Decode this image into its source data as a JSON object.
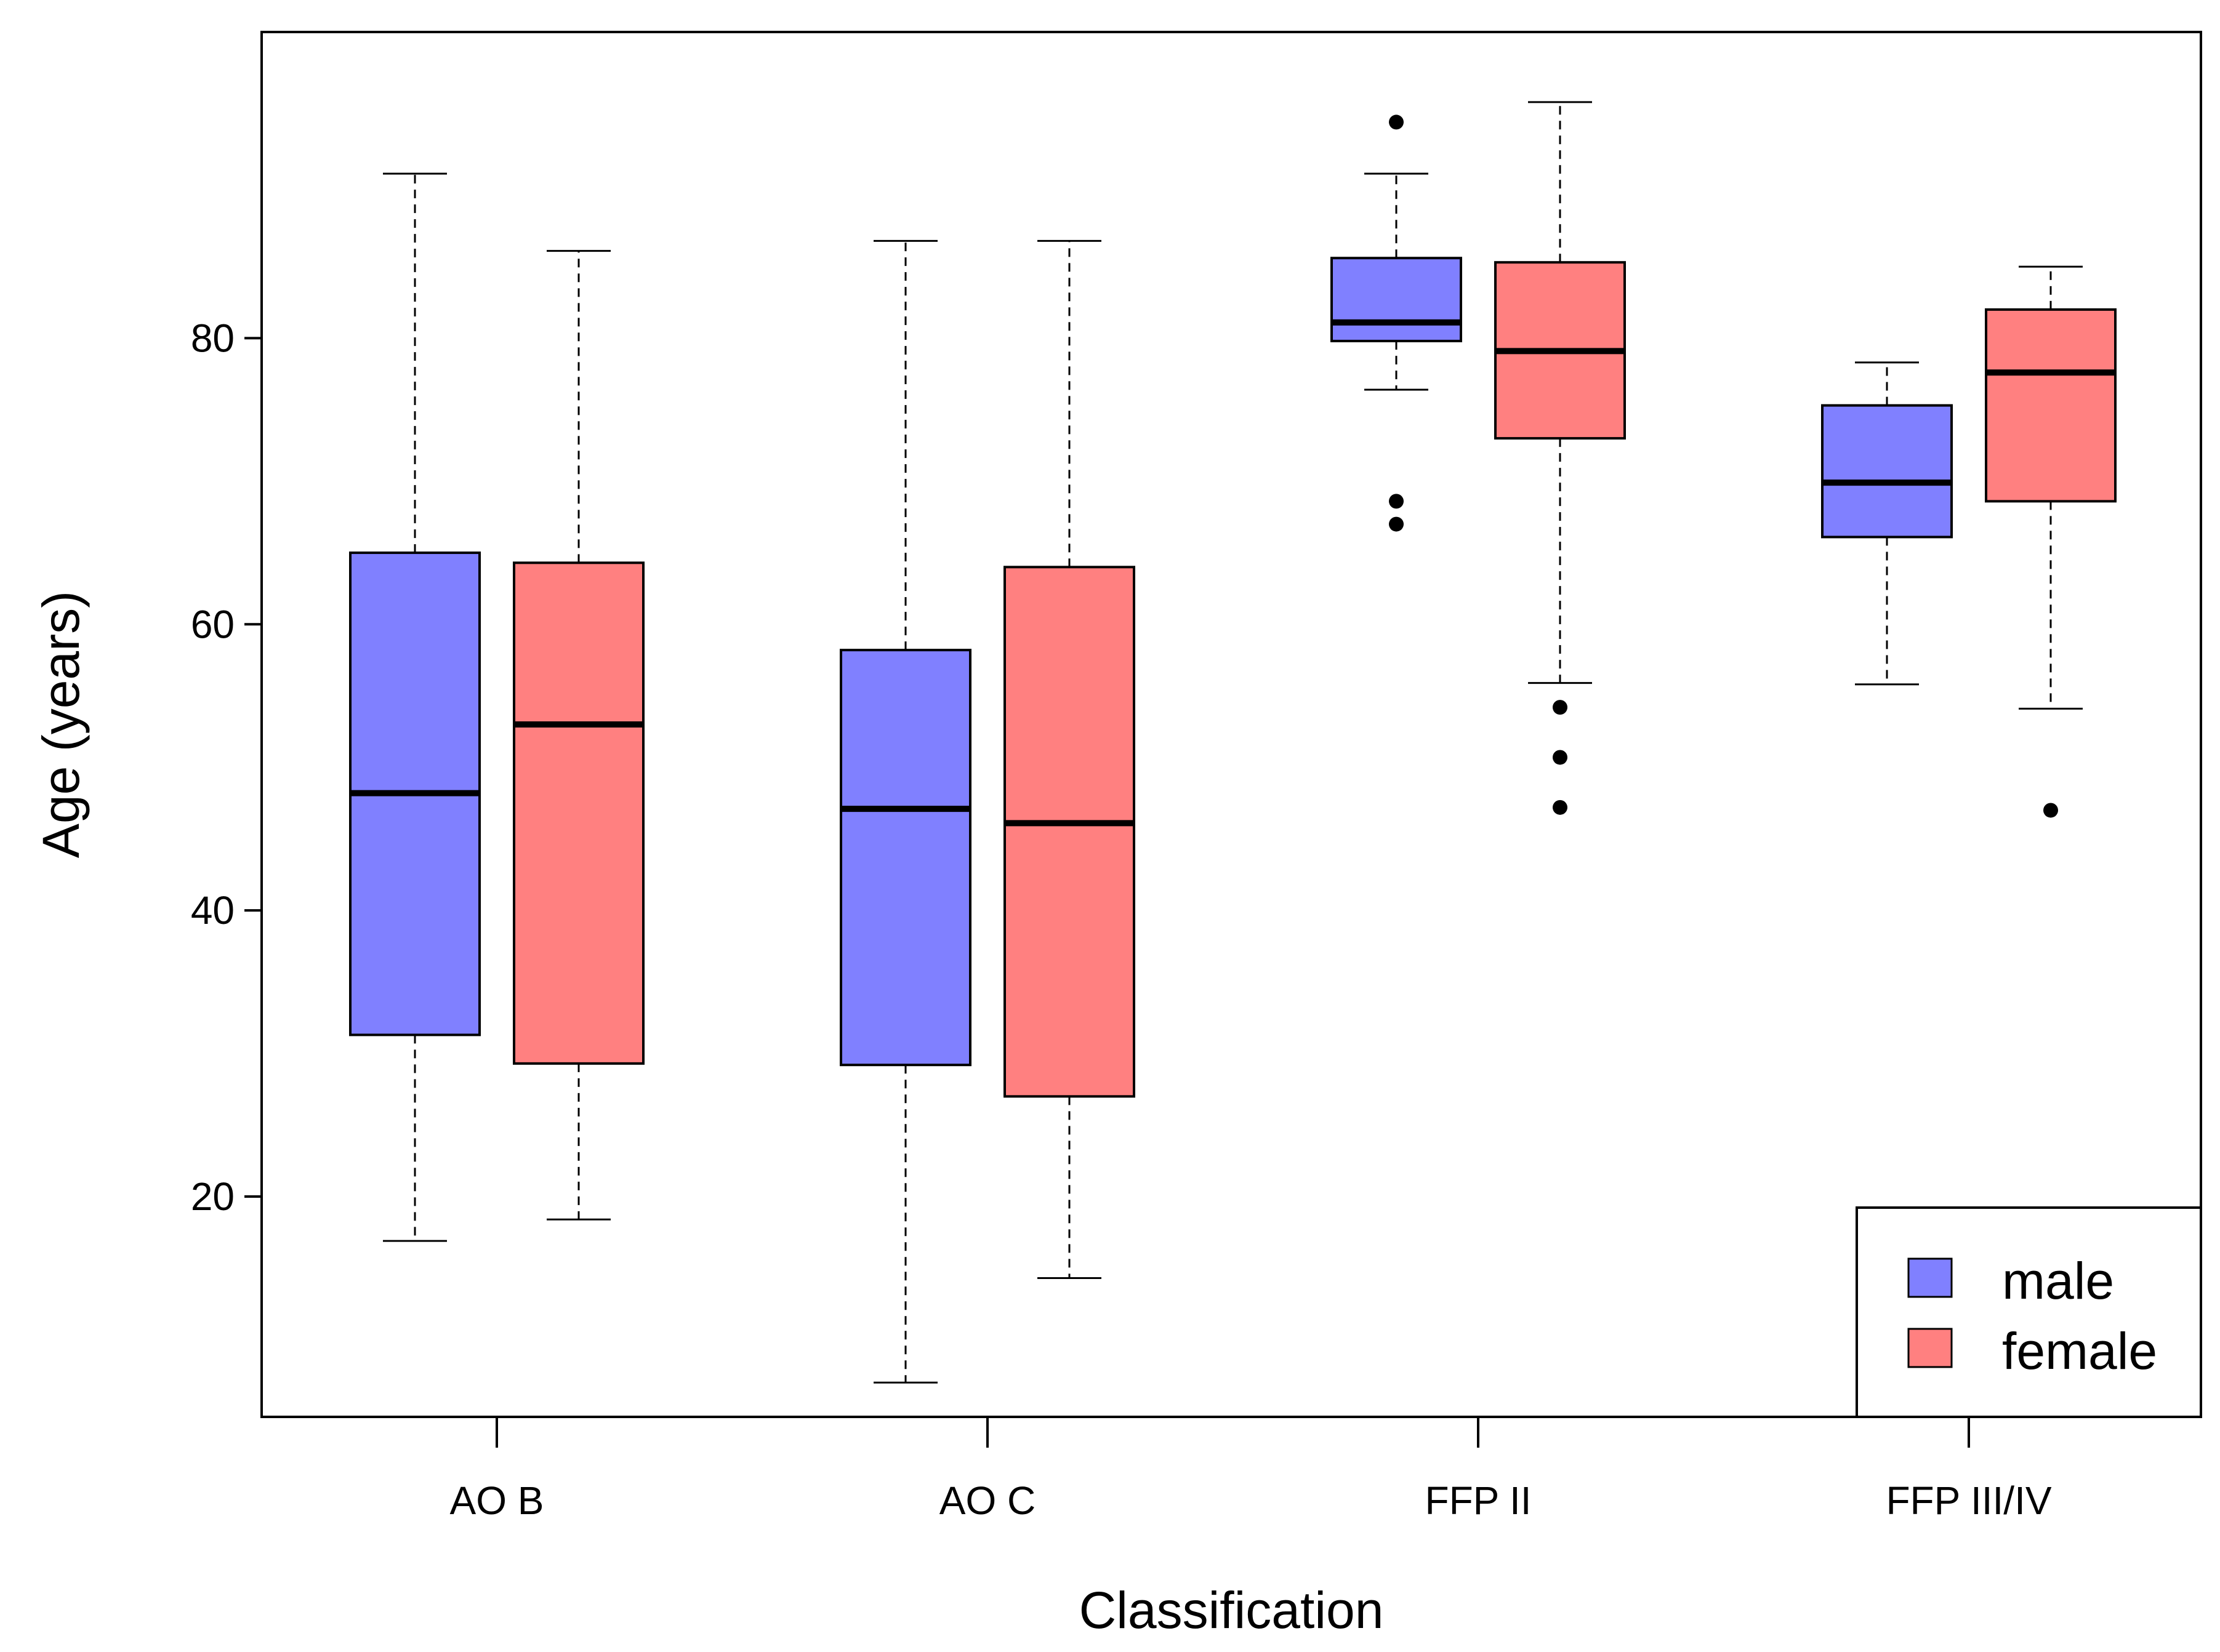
{
  "chart_data": {
    "type": "boxplot",
    "title": "",
    "xlabel": "Classification",
    "ylabel": "Age (years)",
    "ylim": [
      4.6,
      101.4
    ],
    "yticks": [
      20,
      40,
      60,
      80
    ],
    "categories": [
      "AO B",
      "AO C",
      "FFP II",
      "FFP III/IV"
    ],
    "series": [
      {
        "name": "male",
        "color": "#8080ff",
        "boxes": [
          {
            "category": "AO B",
            "whisker_low": 16.9,
            "q1": 31.3,
            "median": 48.2,
            "q3": 65.0,
            "whisker_high": 91.5,
            "outliers": []
          },
          {
            "category": "AO C",
            "whisker_low": 7.0,
            "q1": 29.2,
            "median": 47.1,
            "q3": 58.2,
            "whisker_high": 86.8,
            "outliers": []
          },
          {
            "category": "FFP II",
            "whisker_low": 76.4,
            "q1": 79.8,
            "median": 81.1,
            "q3": 85.6,
            "whisker_high": 91.5,
            "outliers": [
              95.1,
              68.6,
              67.0
            ]
          },
          {
            "category": "FFP III/IV",
            "whisker_low": 55.8,
            "q1": 66.1,
            "median": 69.9,
            "q3": 75.3,
            "whisker_high": 78.3,
            "outliers": []
          }
        ]
      },
      {
        "name": "female",
        "color": "#ff8080",
        "boxes": [
          {
            "category": "AO B",
            "whisker_low": 18.4,
            "q1": 29.3,
            "median": 53.0,
            "q3": 64.3,
            "whisker_high": 86.1,
            "outliers": []
          },
          {
            "category": "AO C",
            "whisker_low": 14.3,
            "q1": 27.0,
            "median": 46.1,
            "q3": 64.0,
            "whisker_high": 86.8,
            "outliers": []
          },
          {
            "category": "FFP II",
            "whisker_low": 55.9,
            "q1": 73.0,
            "median": 79.1,
            "q3": 85.3,
            "whisker_high": 96.5,
            "outliers": [
              54.2,
              50.7,
              47.2
            ]
          },
          {
            "category": "FFP III/IV",
            "whisker_low": 54.1,
            "q1": 68.6,
            "median": 77.6,
            "q3": 82.0,
            "whisker_high": 85.0,
            "outliers": [
              47.0
            ]
          }
        ]
      }
    ],
    "legend": {
      "position": "bottom-right",
      "entries": [
        {
          "label": "male",
          "color": "#8080ff"
        },
        {
          "label": "female",
          "color": "#ff8080"
        }
      ]
    }
  }
}
